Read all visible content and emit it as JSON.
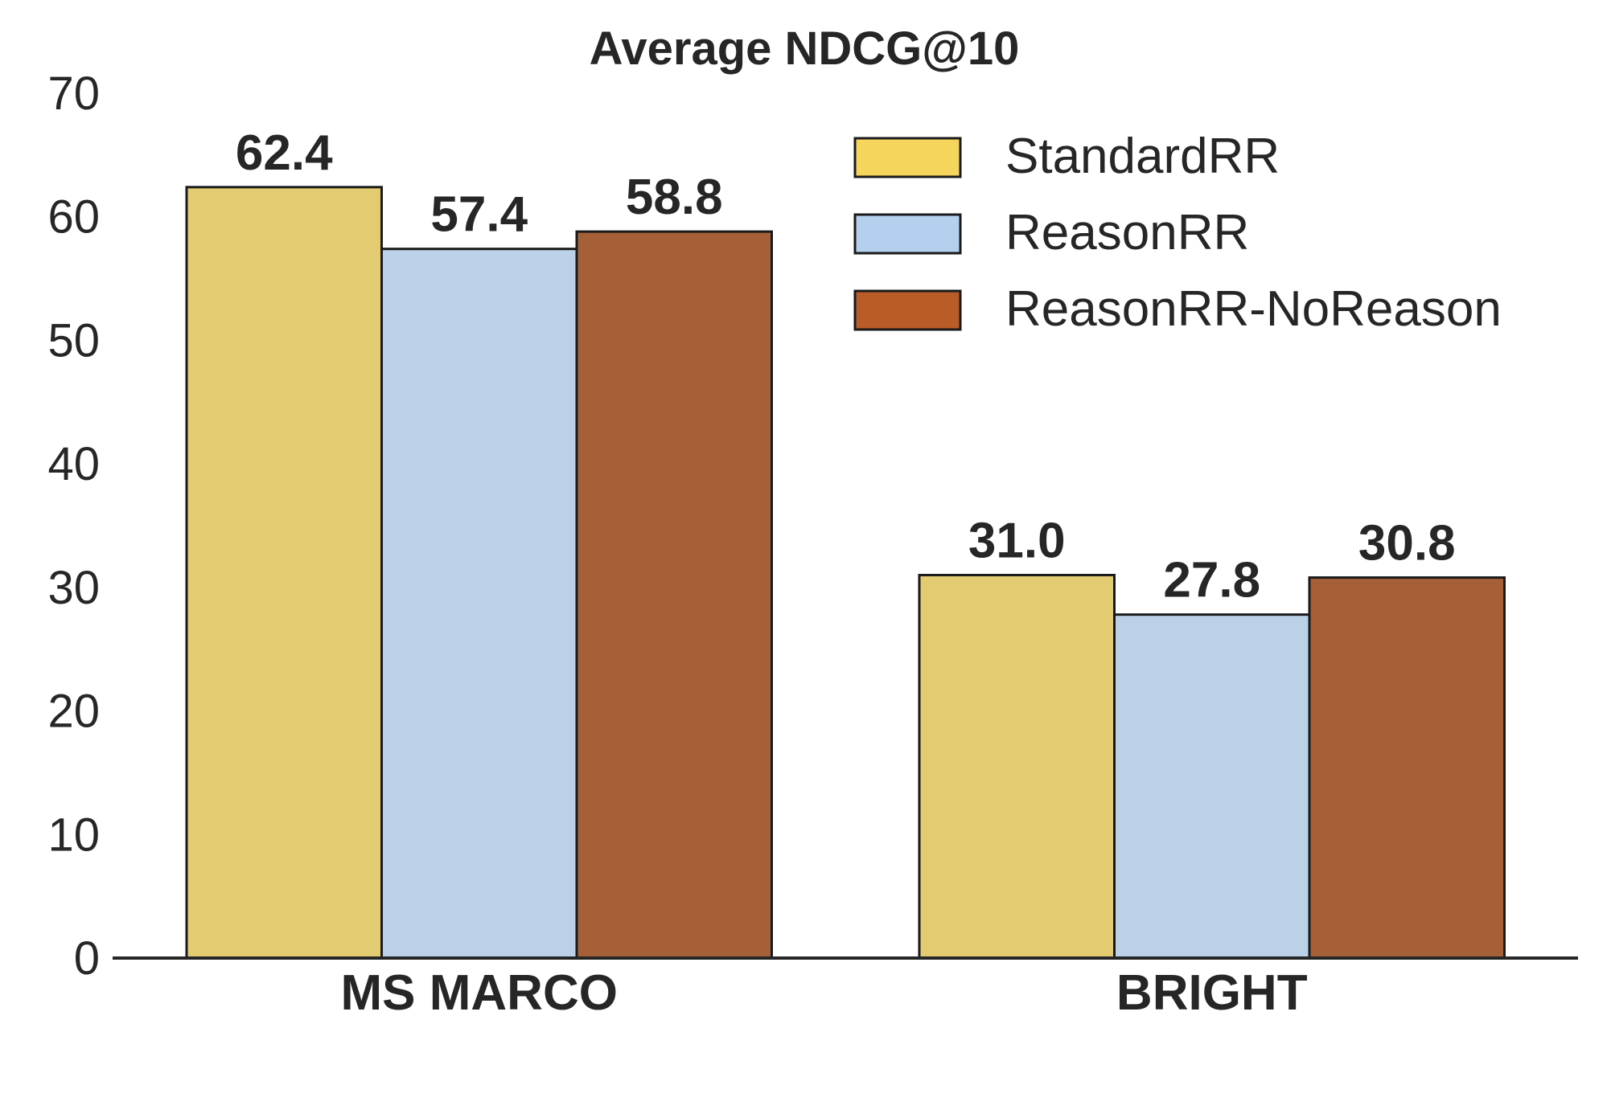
{
  "chart_data": {
    "type": "bar",
    "title": "Average NDCG@10",
    "xlabel": "",
    "ylabel": "",
    "categories": [
      "MS MARCO",
      "BRIGHT"
    ],
    "series": [
      {
        "name": "StandardRR",
        "values": [
          62.4,
          31.0
        ],
        "labels": [
          "62.4",
          "31.0"
        ],
        "color": "#e3cb72",
        "legend_color": "#f6d55c"
      },
      {
        "name": "ReasonRR",
        "values": [
          57.4,
          27.8
        ],
        "labels": [
          "57.4",
          "27.8"
        ],
        "color": "#bad1e8",
        "legend_color": "#b3d1ee"
      },
      {
        "name": "ReasonRR-NoReason",
        "values": [
          58.8,
          30.8
        ],
        "labels": [
          "58.8",
          "30.8"
        ],
        "color": "#a66037",
        "legend_color": "#b95c28"
      }
    ],
    "ylim": [
      0,
      70
    ],
    "yticks": [
      0,
      10,
      20,
      30,
      40,
      50,
      60,
      70
    ],
    "grid": false,
    "legend_position": "top-right"
  }
}
